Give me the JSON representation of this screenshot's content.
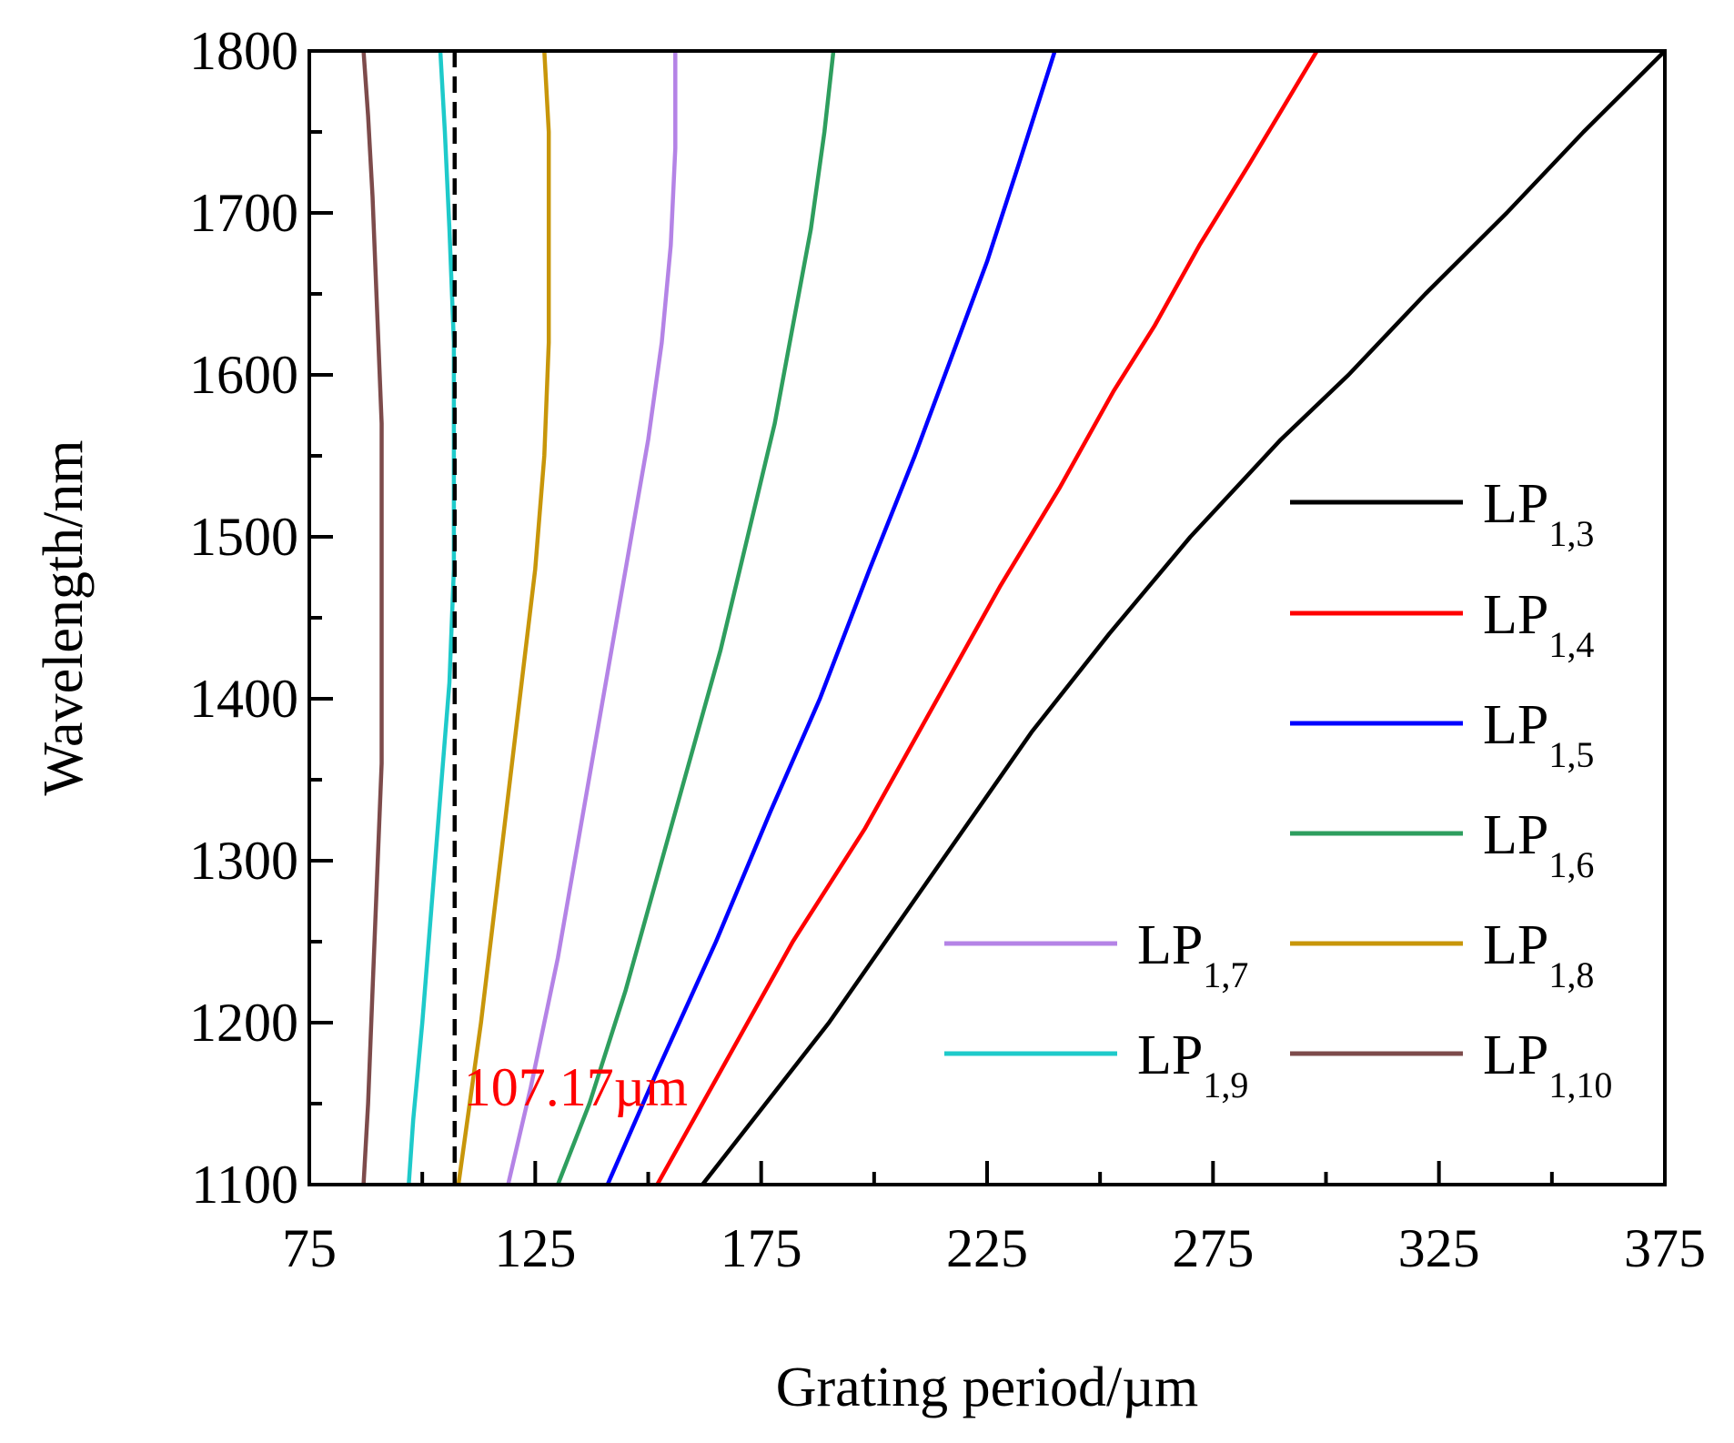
{
  "chart_data": {
    "type": "line",
    "title": "",
    "xlabel": "Grating period/µm",
    "ylabel": "Wavelength/nm",
    "xlim": [
      75,
      375
    ],
    "ylim": [
      1100,
      1800
    ],
    "xticks": [
      75,
      125,
      175,
      225,
      275,
      325,
      375
    ],
    "xminor": [
      100,
      150,
      200,
      250,
      300,
      350
    ],
    "yticks": [
      1100,
      1200,
      1300,
      1400,
      1500,
      1600,
      1700,
      1800
    ],
    "yminor": [
      1150,
      1250,
      1350,
      1450,
      1550,
      1650,
      1750
    ],
    "grid": false,
    "legend_position": "right",
    "series": [
      {
        "id": "lp13",
        "name": "LP",
        "sub": "1,3",
        "color": "#000000",
        "x": [
          162,
          190,
          215,
          235,
          252,
          270,
          290,
          305,
          322,
          340,
          357,
          375
        ],
        "y": [
          1100,
          1200,
          1300,
          1380,
          1440,
          1500,
          1560,
          1600,
          1650,
          1700,
          1750,
          1800
        ]
      },
      {
        "id": "lp14",
        "name": "LP",
        "sub": "1,4",
        "color": "#ff0000",
        "x": [
          152,
          166,
          182,
          198,
          214,
          228,
          241,
          253,
          262,
          272,
          283,
          298
        ],
        "y": [
          1100,
          1170,
          1250,
          1320,
          1400,
          1470,
          1530,
          1590,
          1630,
          1680,
          1730,
          1800
        ]
      },
      {
        "id": "lp15",
        "name": "LP",
        "sub": "1,5",
        "color": "#0000ff",
        "x": [
          141,
          152,
          165,
          177,
          188,
          199,
          209,
          217,
          225,
          232,
          240
        ],
        "y": [
          1100,
          1170,
          1250,
          1330,
          1400,
          1480,
          1550,
          1610,
          1670,
          1730,
          1800
        ]
      },
      {
        "id": "lp16",
        "name": "LP",
        "sub": "1,6",
        "color": "#2e9e5e",
        "x": [
          130,
          137,
          145,
          152,
          159,
          166,
          172,
          178,
          182,
          186,
          189,
          191
        ],
        "y": [
          1100,
          1150,
          1220,
          1290,
          1360,
          1430,
          1500,
          1570,
          1630,
          1690,
          1750,
          1800
        ]
      },
      {
        "id": "lp17",
        "name": "LP",
        "sub": "1,7",
        "color": "#b483e6",
        "x": [
          119,
          124,
          130,
          135,
          140,
          145,
          150,
          153,
          155,
          156,
          156
        ],
        "y": [
          1100,
          1160,
          1240,
          1320,
          1400,
          1480,
          1560,
          1620,
          1680,
          1740,
          1800
        ]
      },
      {
        "id": "lp18",
        "name": "LP",
        "sub": "1,8",
        "color": "#c8960a",
        "x": [
          108,
          110,
          113,
          116,
          119,
          122,
          125,
          127,
          128,
          128,
          128,
          127
        ],
        "y": [
          1100,
          1140,
          1200,
          1270,
          1340,
          1410,
          1480,
          1550,
          1620,
          1690,
          1750,
          1800
        ]
      },
      {
        "id": "lp19",
        "name": "LP",
        "sub": "1,9",
        "color": "#1ecaca",
        "x": [
          97,
          98,
          100,
          102,
          104,
          106,
          107,
          107,
          107,
          106,
          105,
          104
        ],
        "y": [
          1100,
          1140,
          1200,
          1270,
          1340,
          1410,
          1480,
          1550,
          1620,
          1690,
          1750,
          1800
        ]
      },
      {
        "id": "lp110",
        "name": "LP",
        "sub": "1,10",
        "color": "#7d4b4b",
        "x": [
          87,
          88,
          89,
          90,
          91,
          91,
          91,
          91,
          90,
          89,
          88,
          87
        ],
        "y": [
          1100,
          1150,
          1220,
          1290,
          1360,
          1430,
          1500,
          1570,
          1640,
          1710,
          1760,
          1800
        ]
      }
    ],
    "reference_line": {
      "x": 107.17,
      "style": "dashed",
      "color": "#000000"
    },
    "annotation": {
      "text": "107.17µm",
      "color": "#ff0000",
      "x": 107.17,
      "y": 1160
    }
  }
}
